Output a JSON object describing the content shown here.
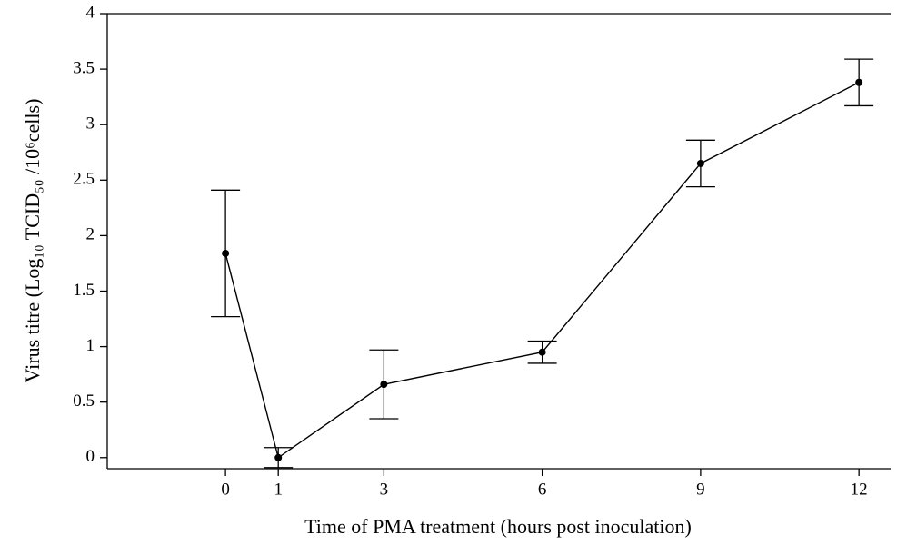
{
  "chart_data": {
    "type": "line",
    "xlabel": "Time of PMA treatment (hours post inoculation)",
    "ylabel": "Virus titre (Log₁₀ TCID₅₀ /10⁶cells)",
    "x": [
      0,
      1,
      3,
      6,
      9,
      12
    ],
    "values": [
      1.84,
      0,
      0.66,
      0.95,
      2.65,
      3.38
    ],
    "errors": [
      0.57,
      0.09,
      0.31,
      0.1,
      0.21,
      0.21
    ],
    "color": "#000000",
    "xlim": [
      -2.24,
      12.6
    ],
    "xticks": [
      0,
      1,
      3,
      6,
      9,
      12
    ],
    "ylim": [
      -0.1,
      4
    ],
    "yticks": [
      0,
      0.5,
      1,
      1.5,
      2,
      2.5,
      3,
      3.5,
      4
    ]
  }
}
